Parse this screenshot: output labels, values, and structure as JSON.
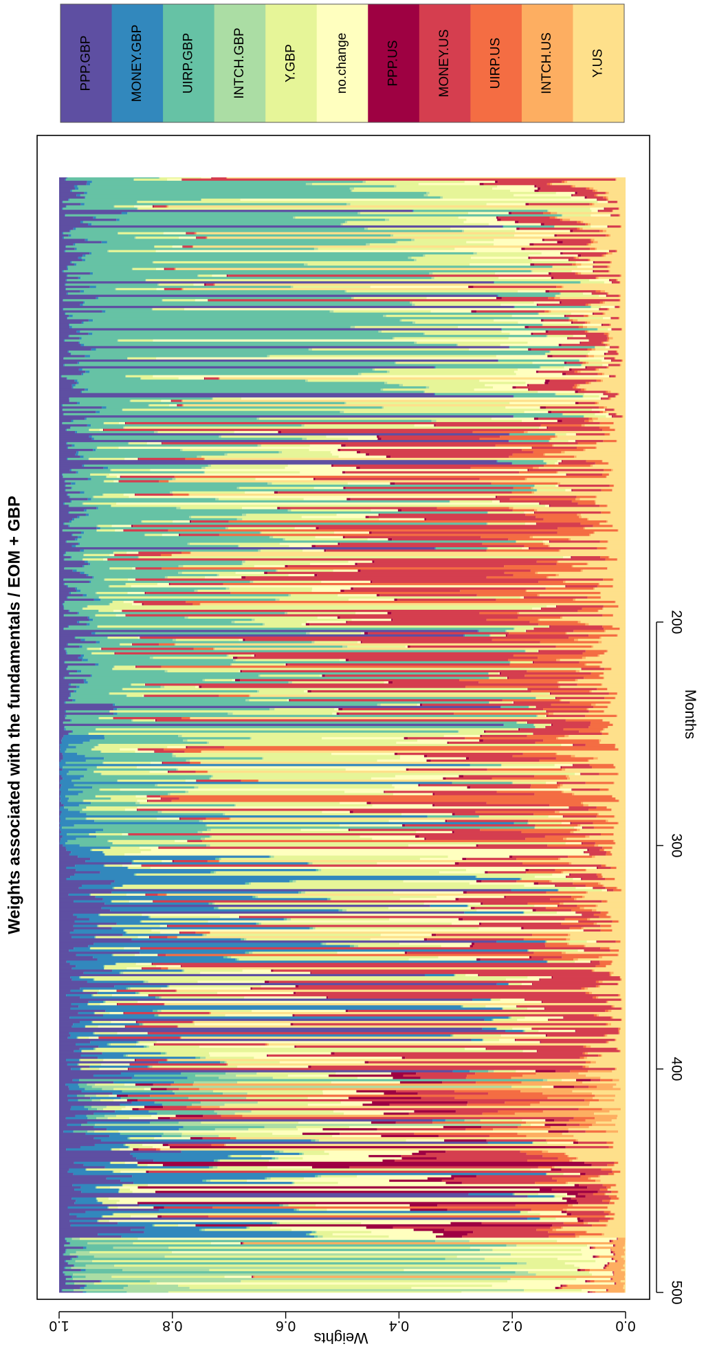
{
  "chart_data": {
    "type": "area",
    "stacked": true,
    "title": "Weights associated with the fundamentals / EOM + GBP",
    "xlabel": "Months",
    "ylabel": "Weights",
    "xlim": [
      1,
      500
    ],
    "ylim": [
      0,
      1
    ],
    "x_ticks": [
      "200",
      "300",
      "400",
      "500"
    ],
    "x_tick_values": [
      200,
      300,
      400,
      500
    ],
    "y_ticks": [
      "0.0",
      "0.2",
      "0.4",
      "0.6",
      "0.8",
      "1.0"
    ],
    "y_tick_values": [
      0,
      0.2,
      0.4,
      0.6,
      0.8,
      1.0
    ],
    "grid": false,
    "legend_position": "right",
    "series_order_bottom_to_top": [
      "Y.US",
      "INTCH.US",
      "UIRP.US",
      "MONEY.US",
      "PPP.US",
      "no.change",
      "Y.GBP",
      "INTCH.GBP",
      "UIRP.GBP",
      "MONEY.GBP",
      "PPP.GBP"
    ],
    "colors": {
      "PPP.GBP": "#5e4fa2",
      "MONEY.GBP": "#3288bd",
      "UIRP.GBP": "#66c2a5",
      "INTCH.GBP": "#abdda4",
      "Y.GBP": "#e6f598",
      "no.change": "#ffffbf",
      "PPP.US": "#9e0142",
      "MONEY.US": "#d53e4f",
      "UIRP.US": "#f46d43",
      "INTCH.US": "#fdae61",
      "Y.US": "#fee08b"
    },
    "regimes": [
      {
        "from": 1,
        "to": 110,
        "weights": {
          "UIRP.GBP": 0.55,
          "Y.GBP": 0.2,
          "no.change": 0.08,
          "MONEY.US": 0.07,
          "Y.US": 0.06,
          "PPP.GBP": 0.04
        }
      },
      {
        "from": 110,
        "to": 200,
        "weights": {
          "MONEY.US": 0.3,
          "UIRP.GBP": 0.25,
          "Y.GBP": 0.15,
          "Y.US": 0.12,
          "UIRP.US": 0.08,
          "no.change": 0.06,
          "PPP.GBP": 0.04
        }
      },
      {
        "from": 200,
        "to": 250,
        "weights": {
          "MONEY.US": 0.35,
          "UIRP.GBP": 0.28,
          "UIRP.US": 0.12,
          "Y.US": 0.1,
          "Y.GBP": 0.1,
          "PPP.GBP": 0.05
        }
      },
      {
        "from": 250,
        "to": 300,
        "weights": {
          "Y.GBP": 0.3,
          "UIRP.GBP": 0.2,
          "MONEY.US": 0.15,
          "UIRP.US": 0.12,
          "no.change": 0.1,
          "Y.US": 0.08,
          "MONEY.GBP": 0.05
        }
      },
      {
        "from": 300,
        "to": 355,
        "weights": {
          "MONEY.GBP": 0.32,
          "Y.GBP": 0.25,
          "MONEY.US": 0.12,
          "no.change": 0.1,
          "Y.US": 0.08,
          "PPP.GBP": 0.08,
          "UIRP.US": 0.05
        }
      },
      {
        "from": 355,
        "to": 400,
        "weights": {
          "MONEY.US": 0.5,
          "no.change": 0.15,
          "Y.GBP": 0.12,
          "MONEY.GBP": 0.1,
          "PPP.GBP": 0.08,
          "Y.US": 0.05
        }
      },
      {
        "from": 400,
        "to": 430,
        "weights": {
          "Y.US": 0.06,
          "INTCH.US": 0.1,
          "UIRP.US": 0.1,
          "MONEY.US": 0.1,
          "PPP.US": 0.1,
          "no.change": 0.1,
          "Y.GBP": 0.14,
          "INTCH.GBP": 0.06,
          "UIRP.GBP": 0.08,
          "MONEY.GBP": 0.08,
          "PPP.GBP": 0.08
        }
      },
      {
        "from": 430,
        "to": 475,
        "weights": {
          "MONEY.GBP": 0.25,
          "MONEY.US": 0.2,
          "no.change": 0.15,
          "PPP.GBP": 0.12,
          "Y.GBP": 0.1,
          "Y.US": 0.08,
          "PPP.US": 0.05,
          "UIRP.US": 0.05
        }
      },
      {
        "from": 475,
        "to": 500,
        "weights": {
          "Y.GBP": 0.5,
          "no.change": 0.2,
          "INTCH.GBP": 0.12,
          "INTCH.US": 0.08,
          "UIRP.GBP": 0.06,
          "PPP.GBP": 0.04
        }
      }
    ]
  },
  "legend": {
    "items": [
      "PPP.GBP",
      "MONEY.GBP",
      "UIRP.GBP",
      "INTCH.GBP",
      "Y.GBP",
      "no.change",
      "PPP.US",
      "MONEY.US",
      "UIRP.US",
      "INTCH.US",
      "Y.US"
    ]
  }
}
